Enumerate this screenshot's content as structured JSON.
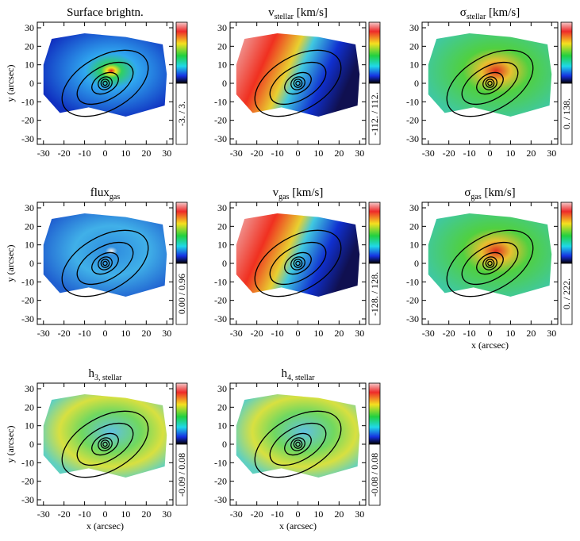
{
  "chart_data": [
    {
      "type": "map",
      "title": "Surface brightn.",
      "colorbar_label": "-3. / 3.",
      "ylabel": "y (arcsec)",
      "xlim": [
        -33,
        33
      ],
      "ylim": [
        -33,
        33
      ],
      "xticks": [
        -30,
        -20,
        -10,
        0,
        10,
        20,
        30
      ],
      "yticks": [
        -30,
        -20,
        -10,
        0,
        10,
        20,
        30
      ]
    },
    {
      "type": "map",
      "title": "v",
      "title_sub": "stellar",
      "title_unit": " [km/s]",
      "colorbar_label": "-112. / 112.",
      "xlim": [
        -33,
        33
      ],
      "ylim": [
        -33,
        33
      ],
      "xticks": [
        -30,
        -20,
        -10,
        0,
        10,
        20,
        30
      ],
      "yticks": [
        -30,
        -20,
        -10,
        0,
        10,
        20,
        30
      ]
    },
    {
      "type": "map",
      "title": "σ",
      "title_sub": "stellar",
      "title_unit": " [km/s]",
      "colorbar_label": "0. / 138.",
      "xlim": [
        -33,
        33
      ],
      "ylim": [
        -33,
        33
      ],
      "xticks": [
        -30,
        -20,
        -10,
        0,
        10,
        20,
        30
      ],
      "yticks": [
        -30,
        -20,
        -10,
        0,
        10,
        20,
        30
      ]
    },
    {
      "type": "map",
      "title": "flux",
      "title_sub": "gas",
      "colorbar_label": "0.00 / 0.96",
      "ylabel": "y (arcsec)",
      "xlim": [
        -33,
        33
      ],
      "ylim": [
        -33,
        33
      ],
      "xticks": [
        -30,
        -20,
        -10,
        0,
        10,
        20,
        30
      ],
      "yticks": [
        -30,
        -20,
        -10,
        0,
        10,
        20,
        30
      ]
    },
    {
      "type": "map",
      "title": "v",
      "title_sub": "gas",
      "title_unit": " [km/s]",
      "colorbar_label": "-128. / 128.",
      "xlim": [
        -33,
        33
      ],
      "ylim": [
        -33,
        33
      ],
      "xticks": [
        -30,
        -20,
        -10,
        0,
        10,
        20,
        30
      ],
      "yticks": [
        -30,
        -20,
        -10,
        0,
        10,
        20,
        30
      ]
    },
    {
      "type": "map",
      "title": "σ",
      "title_sub": "gas",
      "title_unit": " [km/s]",
      "colorbar_label": "0. / 222.",
      "xlabel": "x (arcsec)",
      "xlim": [
        -33,
        33
      ],
      "ylim": [
        -33,
        33
      ],
      "xticks": [
        -30,
        -20,
        -10,
        0,
        10,
        20,
        30
      ],
      "yticks": [
        -30,
        -20,
        -10,
        0,
        10,
        20,
        30
      ]
    },
    {
      "type": "map",
      "title": "h",
      "title_sub": "3, stellar",
      "colorbar_label": "-0.09 / 0.08",
      "ylabel": "y (arcsec)",
      "xlabel": "x (arcsec)",
      "xlim": [
        -33,
        33
      ],
      "ylim": [
        -33,
        33
      ],
      "xticks": [
        -30,
        -20,
        -10,
        0,
        10,
        20,
        30
      ],
      "yticks": [
        -30,
        -20,
        -10,
        0,
        10,
        20,
        30
      ]
    },
    {
      "type": "map",
      "title": "h",
      "title_sub": "4, stellar",
      "colorbar_label": "-0.08 / 0.08",
      "xlabel": "x (arcsec)",
      "xlim": [
        -33,
        33
      ],
      "ylim": [
        -33,
        33
      ],
      "xticks": [
        -30,
        -20,
        -10,
        0,
        10,
        20,
        30
      ],
      "yticks": [
        -30,
        -20,
        -10,
        0,
        10,
        20,
        30
      ]
    }
  ]
}
